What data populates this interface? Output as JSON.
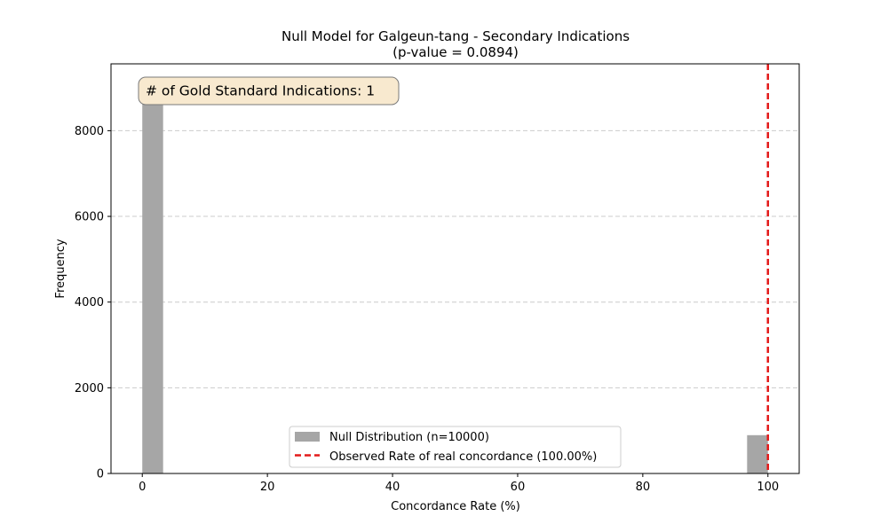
{
  "chart_data": {
    "type": "bar",
    "title_line1": "Null Model for Galgeun-tang - Secondary Indications",
    "title_line2": "(p-value = 0.0894)",
    "xlabel": "Concordance Rate (%)",
    "ylabel": "Frequency",
    "xlim": [
      -5,
      105
    ],
    "ylim": [
      0,
      9560
    ],
    "xticks": [
      0,
      20,
      40,
      60,
      80,
      100
    ],
    "yticks": [
      0,
      2000,
      4000,
      6000,
      8000
    ],
    "bins": [
      {
        "x0": 0,
        "x1": 3.33,
        "value": 9106
      },
      {
        "x0": 96.67,
        "x1": 100,
        "value": 894
      }
    ],
    "observed_rate": 100,
    "grid": "y-dashed",
    "legend_position": "lower-center",
    "legend": {
      "null_label": "Null Distribution (n=10000)",
      "observed_label": "Observed Rate of real concordance (100.00%)"
    },
    "annotation": "# of Gold Standard Indications: 1",
    "colors": {
      "bar": "#a6a6a6",
      "observed_line": "#e31a1a",
      "grid": "#cccccc",
      "annotation_fill": "#f8e9cf",
      "annotation_border": "#7a7a7a"
    }
  }
}
